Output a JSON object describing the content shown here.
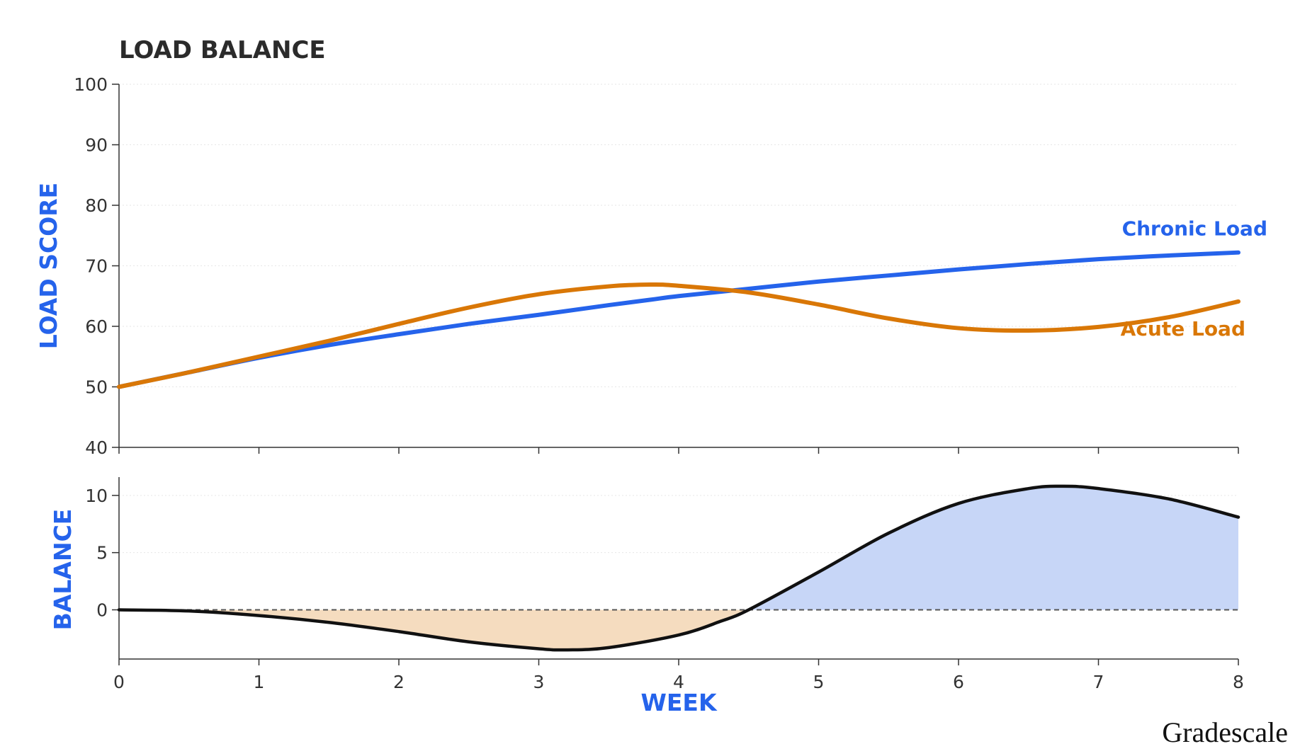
{
  "title": "LOAD BALANCE",
  "brand": "Gradescale",
  "colors": {
    "chronic": "#2563eb",
    "acute": "#d97706",
    "balance_line": "#111111",
    "fill_positive": "#c7d6f7",
    "fill_negative": "#f5dcbf",
    "axis_label": "#2563eb"
  },
  "chart_data": [
    {
      "type": "line",
      "panel": "top",
      "ylabel": "LOAD SCORE",
      "ylim": [
        40,
        100
      ],
      "yticks": [
        40,
        50,
        60,
        70,
        80,
        90,
        100
      ],
      "xlim": [
        0,
        8
      ],
      "grid": true,
      "x": [
        0,
        0.5,
        1,
        1.5,
        2,
        2.5,
        3,
        3.5,
        3.8,
        4,
        4.5,
        5,
        5.5,
        6,
        6.5,
        7,
        7.5,
        8
      ],
      "series": [
        {
          "name": "Chronic Load",
          "values": [
            50,
            52.4,
            54.8,
            56.9,
            58.7,
            60.4,
            61.9,
            63.5,
            64.4,
            65.0,
            66.2,
            67.4,
            68.4,
            69.4,
            70.3,
            71.1,
            71.7,
            72.2
          ]
        },
        {
          "name": "Acute Load",
          "values": [
            50,
            52.4,
            55.0,
            57.6,
            60.4,
            63.1,
            65.3,
            66.6,
            66.9,
            66.7,
            65.6,
            63.6,
            61.3,
            59.7,
            59.3,
            59.9,
            61.5,
            64.1
          ]
        }
      ]
    },
    {
      "type": "area",
      "panel": "bottom",
      "ylabel": "BALANCE",
      "xlabel": "WEEK",
      "ylim": [
        -4.3,
        11.6
      ],
      "yticks": [
        0,
        5,
        10
      ],
      "xlim": [
        0,
        8
      ],
      "xticks": [
        0,
        1,
        2,
        3,
        4,
        5,
        6,
        7,
        8
      ],
      "baseline": 0,
      "x": [
        0,
        0.5,
        1,
        1.5,
        2,
        2.5,
        3,
        3.2,
        3.5,
        4,
        4.3,
        4.5,
        5,
        5.5,
        6,
        6.5,
        6.75,
        7,
        7.5,
        8
      ],
      "values": [
        0,
        -0.1,
        -0.5,
        -1.1,
        -1.9,
        -2.8,
        -3.4,
        -3.5,
        -3.3,
        -2.2,
        -1.0,
        0.0,
        3.3,
        6.7,
        9.3,
        10.6,
        10.8,
        10.6,
        9.7,
        8.1
      ]
    }
  ]
}
